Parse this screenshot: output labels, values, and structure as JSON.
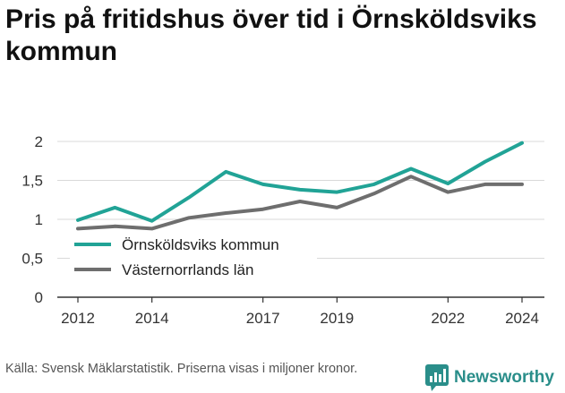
{
  "title": "Pris på fritidshus över tid i Örnsköldsviks kommun",
  "source": "Källa: Svensk Mäklarstatistik. Priserna visas i miljoner kronor.",
  "brand": {
    "name": "Newsworthy",
    "icon": "newsworthy-logo-icon"
  },
  "colors": {
    "series_1": "#21a396",
    "series_2": "#6e6e6e",
    "grid": "#d9d9d9",
    "axis": "#333333"
  },
  "chart_data": {
    "type": "line",
    "title": "Pris på fritidshus över tid i Örnsköldsviks kommun",
    "xlabel": "",
    "ylabel": "",
    "x": [
      2012,
      2013,
      2014,
      2015,
      2016,
      2017,
      2018,
      2019,
      2020,
      2021,
      2022,
      2023,
      2024
    ],
    "x_ticks": [
      2012,
      2014,
      2017,
      2019,
      2022,
      2024
    ],
    "x_tick_labels": [
      "2012",
      "2014",
      "2017",
      "2019",
      "2022",
      "2024"
    ],
    "y_ticks": [
      0,
      0.5,
      1,
      1.5,
      2
    ],
    "y_tick_labels": [
      "0",
      "0,5",
      "1",
      "1,5",
      "2"
    ],
    "ylim": [
      0,
      2
    ],
    "xlim": [
      2012,
      2024
    ],
    "grid": true,
    "legend": "bottom-left",
    "series": [
      {
        "name": "Örnsköldsviks kommun",
        "color": "#21a396",
        "values": [
          0.99,
          1.15,
          0.98,
          1.28,
          1.61,
          1.45,
          1.38,
          1.35,
          1.45,
          1.65,
          1.46,
          1.74,
          1.98
        ]
      },
      {
        "name": "Västernorrlands län",
        "color": "#6e6e6e",
        "values": [
          0.88,
          0.91,
          0.88,
          1.02,
          1.08,
          1.13,
          1.23,
          1.15,
          1.33,
          1.55,
          1.35,
          1.45,
          1.45
        ]
      }
    ]
  }
}
